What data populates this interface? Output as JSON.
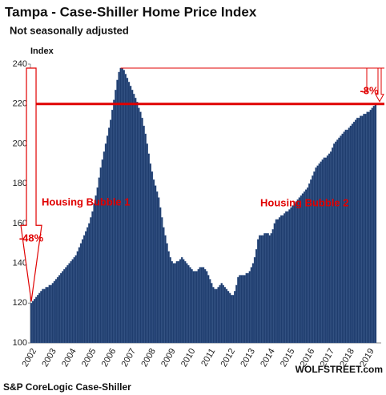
{
  "chart_data": {
    "type": "bar",
    "title": "Tampa - Case-Shiller Home Price Index",
    "subtitle": "Not seasonally adjusted",
    "y_label": "Index",
    "source": "S&P CoreLogic Case-Shiller",
    "credit": "WOLFSTREET.com",
    "color": "#1f3d6e",
    "ylim": [
      100,
      240
    ],
    "yticks": [
      100,
      120,
      140,
      160,
      180,
      200,
      220,
      240
    ],
    "reference_lines": [
      {
        "value": 238,
        "color": "#e00000"
      },
      {
        "value": 220,
        "color": "#e00000"
      }
    ],
    "annotations": [
      "Housing Bubble 1",
      "Housing Bubble 2",
      "-48%",
      "-8%"
    ],
    "categories": [
      "2002",
      null,
      null,
      null,
      null,
      null,
      null,
      null,
      null,
      null,
      null,
      null,
      "2003",
      null,
      null,
      null,
      null,
      null,
      null,
      null,
      null,
      null,
      null,
      null,
      "2004",
      null,
      null,
      null,
      null,
      null,
      null,
      null,
      null,
      null,
      null,
      null,
      "2005",
      null,
      null,
      null,
      null,
      null,
      null,
      null,
      null,
      null,
      null,
      null,
      "2006",
      null,
      null,
      null,
      null,
      null,
      null,
      null,
      null,
      null,
      null,
      null,
      "2007",
      null,
      null,
      null,
      null,
      null,
      null,
      null,
      null,
      null,
      null,
      null,
      "2008",
      null,
      null,
      null,
      null,
      null,
      null,
      null,
      null,
      null,
      null,
      null,
      "2009",
      null,
      null,
      null,
      null,
      null,
      null,
      null,
      null,
      null,
      null,
      null,
      "2010",
      null,
      null,
      null,
      null,
      null,
      null,
      null,
      null,
      null,
      null,
      null,
      "2011",
      null,
      null,
      null,
      null,
      null,
      null,
      null,
      null,
      null,
      null,
      null,
      "2012",
      null,
      null,
      null,
      null,
      null,
      null,
      null,
      null,
      null,
      null,
      null,
      "2013",
      null,
      null,
      null,
      null,
      null,
      null,
      null,
      null,
      null,
      null,
      null,
      "2014",
      null,
      null,
      null,
      null,
      null,
      null,
      null,
      null,
      null,
      null,
      null,
      "2015",
      null,
      null,
      null,
      null,
      null,
      null,
      null,
      null,
      null,
      null,
      null,
      "2016",
      null,
      null,
      null,
      null,
      null,
      null,
      null,
      null,
      null,
      null,
      null,
      "2017",
      null,
      null,
      null,
      null,
      null,
      null,
      null,
      null,
      null,
      null,
      null,
      "2018",
      null,
      null,
      null,
      null,
      null,
      null,
      null,
      null,
      null,
      null,
      null,
      "2019",
      null,
      null,
      null,
      null
    ],
    "values": [
      120,
      121,
      122,
      123,
      124,
      125,
      126,
      127,
      127,
      128,
      128,
      129,
      129,
      130,
      131,
      132,
      133,
      134,
      135,
      136,
      137,
      138,
      139,
      140,
      141,
      142,
      143,
      144,
      146,
      148,
      150,
      152,
      154,
      156,
      158,
      160,
      163,
      166,
      170,
      174,
      178,
      183,
      188,
      192,
      196,
      200,
      204,
      208,
      212,
      217,
      222,
      227,
      232,
      236,
      238,
      238,
      237,
      235,
      233,
      231,
      229,
      227,
      225,
      223,
      221,
      218,
      216,
      213,
      209,
      205,
      200,
      195,
      190,
      186,
      182,
      179,
      176,
      173,
      168,
      163,
      158,
      154,
      150,
      146,
      143,
      141,
      140,
      140,
      141,
      141,
      142,
      143,
      142,
      141,
      140,
      139,
      138,
      137,
      136,
      136,
      136,
      137,
      138,
      138,
      138,
      137,
      136,
      134,
      132,
      130,
      128,
      127,
      127,
      128,
      129,
      130,
      129,
      128,
      127,
      126,
      125,
      124,
      124,
      126,
      129,
      133,
      134,
      134,
      134,
      134,
      135,
      135,
      136,
      138,
      140,
      143,
      147,
      152,
      154,
      154,
      154,
      155,
      155,
      155,
      154,
      155,
      157,
      160,
      162,
      162,
      163,
      164,
      164,
      165,
      166,
      166,
      167,
      168,
      169,
      170,
      171,
      172,
      173,
      174,
      175,
      176,
      177,
      178,
      180,
      182,
      184,
      186,
      188,
      189,
      190,
      191,
      192,
      193,
      193,
      194,
      195,
      196,
      198,
      200,
      201,
      202,
      203,
      204,
      205,
      206,
      207,
      207,
      208,
      209,
      210,
      211,
      212,
      213,
      213,
      214,
      214,
      215,
      215,
      216,
      216,
      217,
      218,
      219,
      220
    ]
  }
}
